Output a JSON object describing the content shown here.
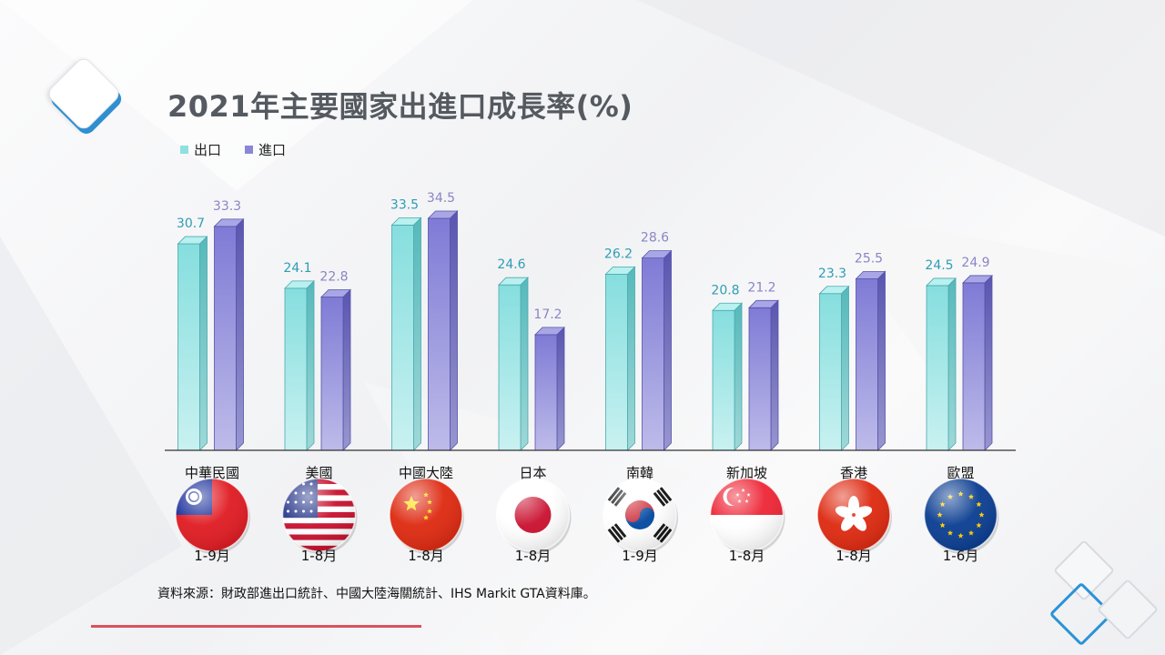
{
  "title": "2021年主要國家出進口成長率(%)",
  "source": "資料來源：財政部進出口統計、中國大陸海關統計、IHS Markit GTA資料庫。",
  "colors": {
    "export": "#8fe0e0",
    "import": "#8a86d8",
    "export_label": "#2e9db5",
    "import_label": "#8a86c4"
  },
  "flag_icons": [
    "taiwan-flag-icon",
    "usa-flag-icon",
    "china-flag-icon",
    "japan-flag-icon",
    "korea-flag-icon",
    "singapore-flag-icon",
    "hongkong-flag-icon",
    "eu-flag-icon"
  ],
  "chart_data": {
    "type": "bar",
    "categories": [
      "中華民國",
      "美國",
      "中國大陸",
      "日本",
      "南韓",
      "新加坡",
      "香港",
      "歐盟"
    ],
    "periods": [
      "1-9月",
      "1-8月",
      "1-8月",
      "1-8月",
      "1-9月",
      "1-8月",
      "1-8月",
      "1-6月"
    ],
    "series": [
      {
        "name": "出口",
        "values": [
          30.7,
          24.1,
          33.5,
          24.6,
          26.2,
          20.8,
          23.3,
          24.5
        ]
      },
      {
        "name": "進口",
        "values": [
          33.3,
          22.8,
          34.5,
          17.2,
          28.6,
          21.2,
          25.5,
          24.9
        ]
      }
    ],
    "ylim": [
      0,
      36
    ],
    "legend": "top-left",
    "grid": false
  }
}
